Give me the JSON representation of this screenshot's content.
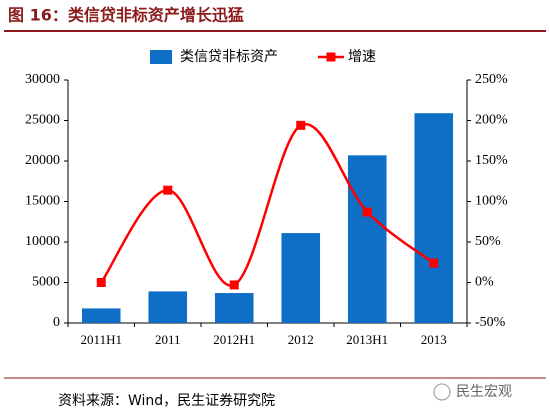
{
  "chart_data": {
    "type": "bar",
    "title": "图 16：类信贷非标资产增长迅猛",
    "source": "资料来源：Wind，民生证券研究院",
    "watermark": "民生宏观",
    "categories": [
      "2011H1",
      "2011",
      "2012H1",
      "2012",
      "2013H1",
      "2013"
    ],
    "series": [
      {
        "name": "类信贷非标资产",
        "type": "bar",
        "color": "#0f6fc6",
        "values": [
          1800,
          3900,
          3700,
          11100,
          20700,
          25900
        ]
      },
      {
        "name": "增速",
        "type": "line",
        "axis": "y2",
        "color": "#ff0000",
        "values": [
          0,
          114,
          -3,
          194,
          87,
          24
        ]
      }
    ],
    "ylim": [
      0,
      30000
    ],
    "yticks": [
      0,
      5000,
      10000,
      15000,
      20000,
      25000,
      30000
    ],
    "y2lim": [
      -50,
      250
    ],
    "y2ticks": [
      {
        "value": -50,
        "label": "-50%"
      },
      {
        "value": 0,
        "label": "0%"
      },
      {
        "value": 50,
        "label": "50%"
      },
      {
        "value": 100,
        "label": "100%"
      },
      {
        "value": 150,
        "label": "150%"
      },
      {
        "value": 200,
        "label": "200%"
      },
      {
        "value": 250,
        "label": "250%"
      }
    ],
    "grid": false
  }
}
